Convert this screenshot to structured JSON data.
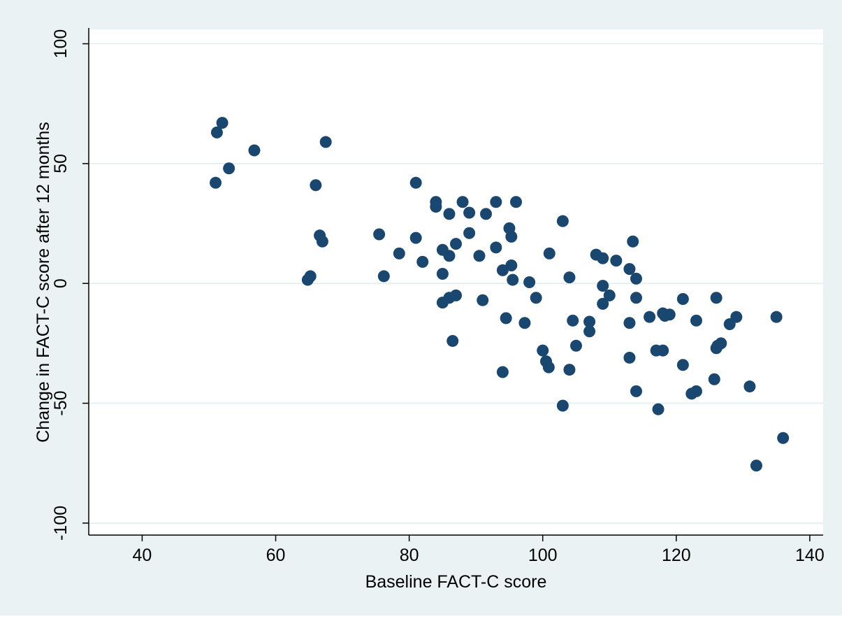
{
  "colors": {
    "outer_background": "#eaf2f3",
    "plot_background": "#ffffff",
    "gridline": "#e6efef",
    "marker": "#1a476f",
    "axis": "#000000"
  },
  "chart_data": {
    "type": "scatter",
    "title": "",
    "xlabel": "Baseline FACT-C score",
    "ylabel": "Change in FACT-C score after 12 months",
    "xlim": [
      32,
      142
    ],
    "ylim": [
      -105,
      106
    ],
    "xticks": [
      40,
      60,
      80,
      100,
      120,
      140
    ],
    "xtick_labels": [
      "40",
      "60",
      "80",
      "100",
      "120",
      "140"
    ],
    "yticks": [
      -100,
      -50,
      0,
      50,
      100
    ],
    "ytick_labels": [
      "-100",
      "-50",
      "0",
      "50",
      "100"
    ],
    "grid": "horizontal",
    "legend": "none",
    "series": [
      {
        "points": [
          [
            51.2,
            63
          ],
          [
            52,
            67
          ],
          [
            53,
            48
          ],
          [
            51,
            42
          ],
          [
            56.8,
            55.5
          ],
          [
            64.8,
            1.5
          ],
          [
            65.2,
            3
          ],
          [
            66,
            41
          ],
          [
            66.6,
            20
          ],
          [
            67,
            17.5
          ],
          [
            67.5,
            59
          ],
          [
            75.5,
            20.5
          ],
          [
            76.2,
            3
          ],
          [
            78.5,
            12.5
          ],
          [
            81,
            42
          ],
          [
            81,
            19
          ],
          [
            82,
            9
          ],
          [
            84,
            34
          ],
          [
            84,
            32
          ],
          [
            85,
            14
          ],
          [
            85,
            4
          ],
          [
            85,
            -8
          ],
          [
            86,
            29
          ],
          [
            86,
            11.5
          ],
          [
            86,
            -6
          ],
          [
            86.5,
            -24
          ],
          [
            87,
            16.5
          ],
          [
            87,
            -5
          ],
          [
            88,
            34
          ],
          [
            89,
            29.5
          ],
          [
            89,
            21
          ],
          [
            90.5,
            11.5
          ],
          [
            91,
            -7
          ],
          [
            91.5,
            29
          ],
          [
            93,
            34
          ],
          [
            93,
            15
          ],
          [
            94,
            5.5
          ],
          [
            94,
            -37
          ],
          [
            94.5,
            -14.5
          ],
          [
            95,
            23
          ],
          [
            95.3,
            19.5
          ],
          [
            95.3,
            7.5
          ],
          [
            95.5,
            1.5
          ],
          [
            96,
            34
          ],
          [
            97.3,
            -16.5
          ],
          [
            98,
            0.5
          ],
          [
            99,
            -6
          ],
          [
            100,
            -28
          ],
          [
            100.5,
            -32.5
          ],
          [
            100.9,
            -35
          ],
          [
            101,
            12.5
          ],
          [
            103,
            26
          ],
          [
            103,
            -51
          ],
          [
            104,
            2.5
          ],
          [
            104,
            -36
          ],
          [
            104.5,
            -15.5
          ],
          [
            105,
            -26
          ],
          [
            107,
            -16
          ],
          [
            107,
            -20
          ],
          [
            108,
            12
          ],
          [
            109,
            10.5
          ],
          [
            109,
            -1
          ],
          [
            109,
            -8.5
          ],
          [
            110,
            -5
          ],
          [
            111,
            9.5
          ],
          [
            113,
            6
          ],
          [
            113,
            -16.5
          ],
          [
            113,
            -31
          ],
          [
            113.5,
            17.5
          ],
          [
            114,
            2
          ],
          [
            114,
            -6
          ],
          [
            114,
            -45
          ],
          [
            116,
            -14
          ],
          [
            117,
            -28
          ],
          [
            117.3,
            -52.5
          ],
          [
            118,
            -12.5
          ],
          [
            118,
            -28
          ],
          [
            118.3,
            -13.5
          ],
          [
            119,
            -13
          ],
          [
            121,
            -6.5
          ],
          [
            121,
            -34
          ],
          [
            122.3,
            -46
          ],
          [
            123,
            -15.5
          ],
          [
            123,
            -45
          ],
          [
            125.7,
            -40
          ],
          [
            126,
            -6
          ],
          [
            126,
            -27
          ],
          [
            126.2,
            -26
          ],
          [
            126.7,
            -25
          ],
          [
            128,
            -17
          ],
          [
            129,
            -14
          ],
          [
            131,
            -43
          ],
          [
            132,
            -76
          ],
          [
            135,
            -14
          ],
          [
            136,
            -64.5
          ]
        ]
      }
    ]
  }
}
